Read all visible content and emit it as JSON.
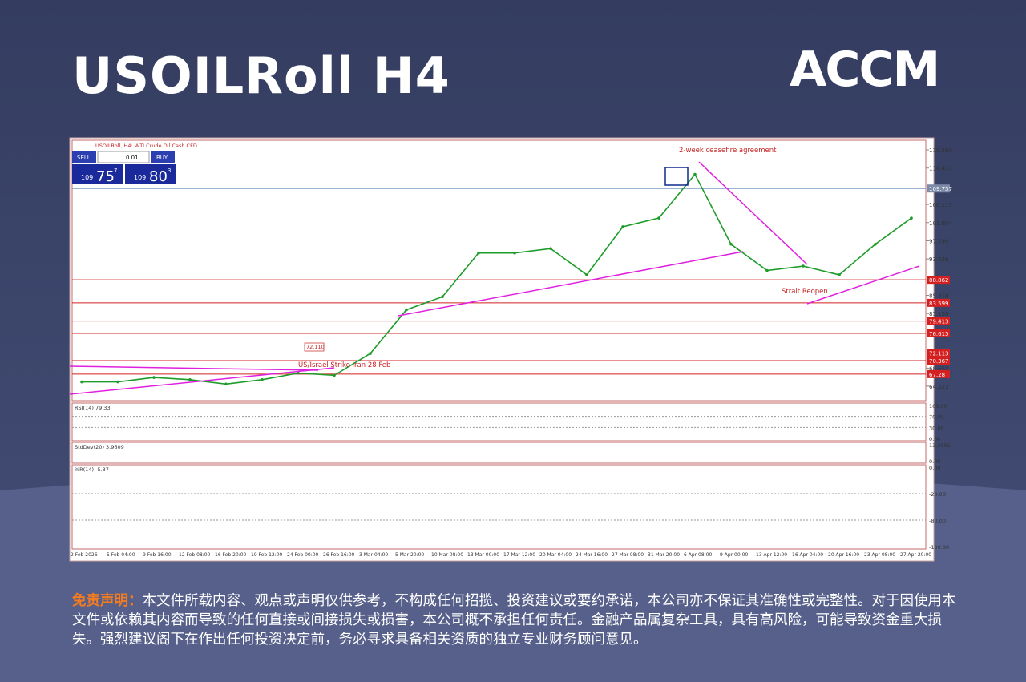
{
  "header": {
    "title": "USOILRoll H4",
    "logo": "ACCM"
  },
  "chart_data": {
    "type": "line",
    "title": "USOILRoll, H4: WTI Crude Oil Cash CFD",
    "color": "#1e9c2a",
    "categories": [
      "2 Feb 2026",
      "5 Feb 04:00",
      "9 Feb 16:00",
      "12 Feb 08:00",
      "16 Feb 20:00",
      "19 Feb 12:00",
      "24 Feb 00:00",
      "26 Feb 16:00",
      "3 Mar 04:00",
      "5 Mar 20:00",
      "10 Mar 08:00",
      "13 Mar 00:00",
      "17 Mar 12:00",
      "20 Mar 04:00",
      "24 Mar 16:00",
      "27 Mar 08:00",
      "31 Mar 20:00",
      "6 Apr 08:00",
      "9 Apr 00:00",
      "13 Apr 12:00",
      "16 Apr 04:00",
      "20 Apr 16:00",
      "23 Apr 08:00",
      "27 Apr 20:00"
    ],
    "values": [
      65.5,
      65.5,
      66.5,
      66,
      65,
      66,
      67.5,
      67,
      72,
      82,
      85,
      95,
      95,
      96,
      90,
      101,
      103,
      113,
      97,
      91,
      92,
      90,
      97,
      103
    ],
    "ylim": [
      61.2,
      120.8
    ],
    "yticks": [
      {
        "value": 118.59,
        "label": "118.590"
      },
      114.431,
      106.113,
      101.954,
      97.795,
      93.636,
      85.318,
      81.159,
      68.652,
      64.523
    ],
    "levels": [
      88.862,
      83.599,
      79.413,
      76.615,
      72.113,
      70.367,
      67.28
    ],
    "level_color": "#d42020",
    "current_price": 109.757,
    "annotations": [
      "2-week ceasefire agreement",
      "US/Israel Strike Iran 28 Feb",
      "Strait Reopen",
      "72.110"
    ],
    "trade_panel": {
      "sell": "SELL",
      "lot": "0.01",
      "buy": "BUY",
      "bid_big": "109",
      "bid": "75",
      "bid_sup": "7",
      "ask_big": "109",
      "ask": "80",
      "ask_sup": "3"
    },
    "indicators": [
      {
        "name": "RSI(14) 79.33",
        "ticks": [
          "100.00",
          "70.00",
          "30.00",
          "0.00"
        ]
      },
      {
        "name": "StdDev(20) 3.9609",
        "ticks": [
          "13.2081",
          "0.00"
        ]
      },
      {
        "name": "%R(14) -5.37",
        "ticks": [
          "0.00",
          "-20.00",
          "-80.00",
          "-100.00"
        ]
      }
    ]
  },
  "disclaimer": {
    "label": "免责声明：",
    "text": "本文件所载内容、观点或声明仅供参考，不构成任何招揽、投资建议或要约承诺，本公司亦不保证其准确性或完整性。对于因使用本文件或依赖其内容而导致的任何直接或间接损失或损害，本公司概不承担任何责任。金融产品属复杂工具，具有高风险，可能导致资金重大损失。强烈建议阁下在作出任何投资决定前，务必寻求具备相关资质的独立专业财务顾问意见。"
  }
}
